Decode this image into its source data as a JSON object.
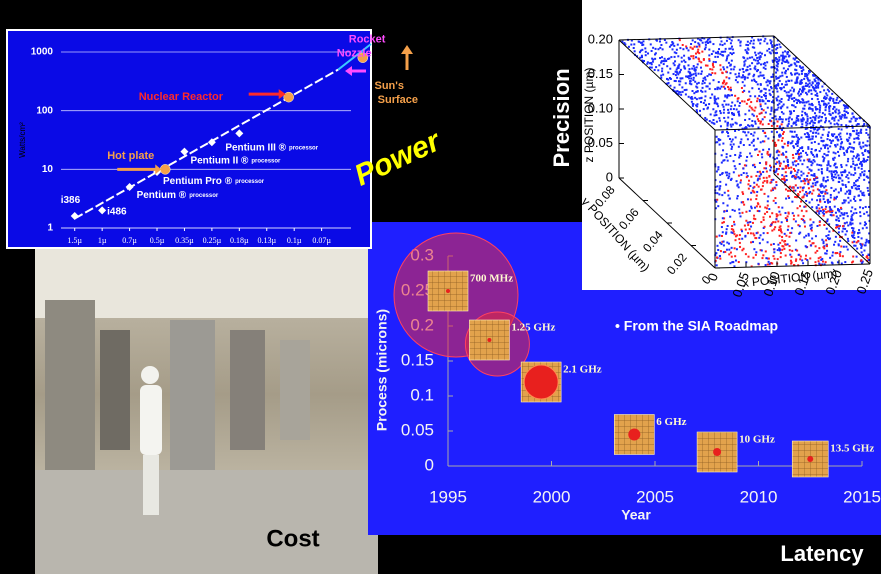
{
  "labels": {
    "power": "Power",
    "precision": "Precision",
    "cost": "Cost",
    "latency": "Latency"
  },
  "power_chart": {
    "type": "scatter",
    "y_label": "Watts/cm²",
    "log_y": true,
    "grid": true,
    "xlim": [
      -0.5,
      10.8
    ],
    "ylim": [
      1,
      1000
    ],
    "yticks": [
      1,
      10,
      100,
      1000
    ],
    "xticks": [
      {
        "value": 0,
        "label": "1.5µ"
      },
      {
        "value": 1,
        "label": "1µ"
      },
      {
        "value": 2,
        "label": "0.7µ"
      },
      {
        "value": 3,
        "label": "0.5µ"
      },
      {
        "value": 4,
        "label": "0.35µ"
      },
      {
        "value": 5,
        "label": "0.25µ"
      },
      {
        "value": 6,
        "label": "0.18µ"
      },
      {
        "value": 7,
        "label": "0.13µ"
      },
      {
        "value": 8,
        "label": "0.1µ"
      },
      {
        "value": 9,
        "label": "0.07µ"
      }
    ],
    "processor_note": "processor",
    "processors": {
      "color": "#ffffff",
      "names": [
        "i386",
        "i486",
        "Pentium ®",
        "Pentium Pro ®",
        "Pentium II ®",
        null,
        "Pentium III ®"
      ],
      "x": [
        0,
        1,
        2,
        3,
        4,
        5,
        6
      ],
      "values": [
        1.6,
        2,
        5,
        9,
        20,
        29,
        41
      ]
    },
    "references": [
      {
        "label": [
          "Hot plate"
        ],
        "color": "#f5a04a",
        "x": 3.3,
        "value": 10
      },
      {
        "label": [
          "Nuclear Reactor"
        ],
        "color": "#ff2a2a",
        "x": 7.8,
        "value": 170
      },
      {
        "label": [
          "Rocket",
          "Nozzle"
        ],
        "color": "#ff4cff",
        "x": 10.5,
        "value": 800
      }
    ],
    "sun_label": [
      "Sun's",
      "Surface"
    ]
  },
  "latency_chart": {
    "type": "scatter",
    "x_label": "Year",
    "y_label": "Process (microns)",
    "note": "• From the SIA Roadmap",
    "xlim": [
      1995,
      2015
    ],
    "xticks": [
      1995,
      2000,
      2005,
      2010,
      2015
    ],
    "ylim": [
      0,
      0.3
    ],
    "yticks": [
      0,
      0.05,
      0.1,
      0.15,
      0.2,
      0.25,
      0.3
    ],
    "names": [
      "700 MHz",
      "1.25 GHz",
      "2.1 GHz",
      "6 GHz",
      "10 GHz",
      "13.5 GHz"
    ],
    "x": [
      1995,
      1997,
      1999.5,
      2004,
      2008,
      2012.5
    ],
    "values": [
      0.25,
      0.18,
      0.12,
      0.045,
      0.02,
      0.01
    ]
  },
  "precision_chart": {
    "type": "scatter3d",
    "x_label": "x POSITION (µm)",
    "y_label": "y POSITION (µm)",
    "z_label": "z POSITION (µm)",
    "xlim": [
      0,
      0.25
    ],
    "ylim": [
      0,
      0.08
    ],
    "zlim": [
      0,
      0.2
    ],
    "xticks": [
      0,
      0.05,
      {
        "value": 0.1,
        "label": "0.10"
      },
      0.15,
      {
        "value": 0.2,
        "label": "0.20"
      },
      0.25
    ],
    "yticks": [
      0.08,
      0.06,
      0.04,
      0.02,
      0
    ],
    "zticks": [
      0,
      0.05,
      {
        "value": 0.1,
        "label": "0.10"
      },
      0.15,
      {
        "value": 0.2,
        "label": "0.20"
      }
    ]
  }
}
